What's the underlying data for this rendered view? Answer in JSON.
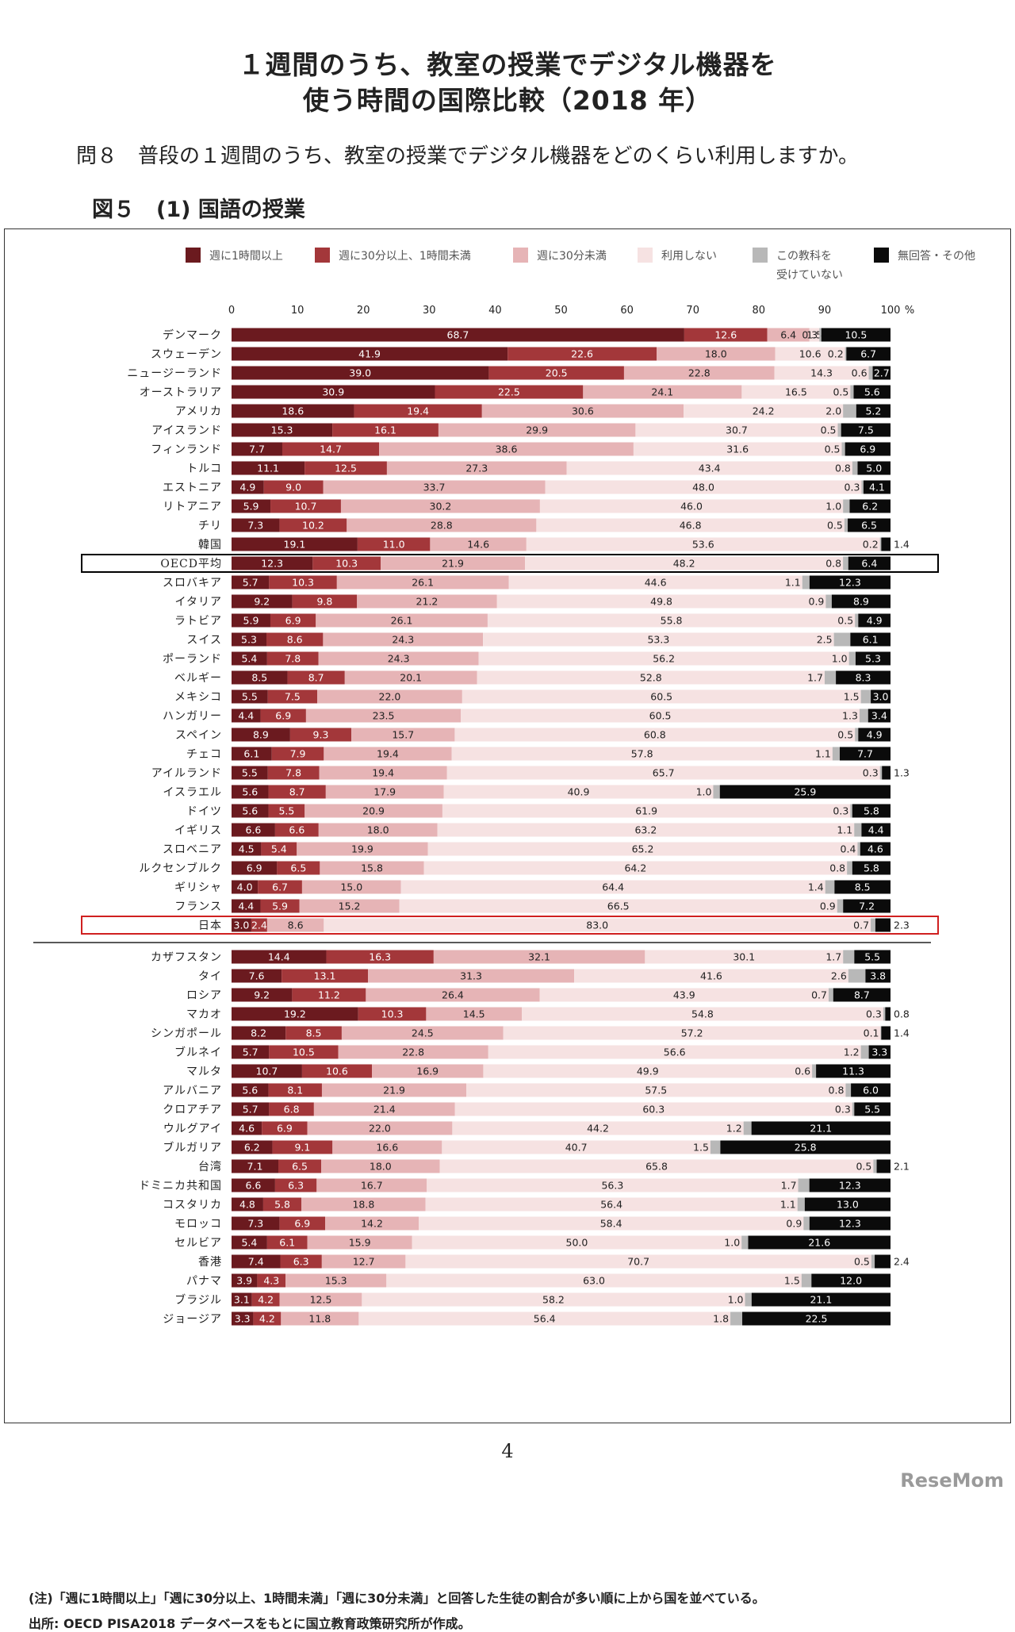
{
  "page": {
    "title_line1": "１週間のうち、教室の授業でデジタル機器を",
    "title_line2": "使う時間の国際比較（2018 年）",
    "question": "問８　普段の１週間のうち、教室の授業でデジタル機器をどのくらい利用しますか。",
    "figure_label": "図５　(1) 国語の授業",
    "note": "(注)「週に1時間以上」「週に30分以上、1時間未満」「週に30分未満」と回答した生徒の割合が多い順に上から国を並べている。",
    "source": "出所: OECD PISA2018 データベースをもとに国立教育政策研究所が作成。",
    "page_number": "4",
    "watermark": "ReseMom"
  },
  "chart_data": {
    "type": "bar",
    "orientation": "horizontal",
    "stacked": true,
    "xlim": [
      0,
      100
    ],
    "ticks": [
      0,
      10,
      20,
      30,
      40,
      50,
      60,
      70,
      80,
      90,
      100
    ],
    "tick_suffix": "%",
    "legend": [
      {
        "name": "週に1時間以上",
        "color": "#6b1a1f"
      },
      {
        "name": "週に30分以上、1時間未満",
        "color": "#a3373a"
      },
      {
        "name": "週に30分未満",
        "color": "#e6b4b6"
      },
      {
        "name": "利用しない",
        "color": "#f6e2e2"
      },
      {
        "name": "この教科を受けていない",
        "color": "#b8b8b8"
      },
      {
        "name": "無回答・その他",
        "color": "#0b0b0b"
      }
    ],
    "highlight": [
      {
        "country": "OECD平均",
        "color": "#000000"
      },
      {
        "country": "日本",
        "color": "#d02020"
      }
    ],
    "rows": [
      {
        "country": "デンマーク",
        "values": [
          68.7,
          12.6,
          6.4,
          1.5,
          0.3,
          10.5
        ]
      },
      {
        "country": "スウェーデン",
        "values": [
          41.9,
          22.6,
          18.0,
          10.6,
          0.2,
          6.7
        ]
      },
      {
        "country": "ニュージーランド",
        "values": [
          39.0,
          20.5,
          22.8,
          14.3,
          0.6,
          2.7
        ]
      },
      {
        "country": "オーストラリア",
        "values": [
          30.9,
          22.5,
          24.1,
          16.5,
          0.5,
          5.6
        ]
      },
      {
        "country": "アメリカ",
        "values": [
          18.6,
          19.4,
          30.6,
          24.2,
          2.0,
          5.2
        ]
      },
      {
        "country": "アイスランド",
        "values": [
          15.3,
          16.1,
          29.9,
          30.7,
          0.5,
          7.5
        ]
      },
      {
        "country": "フィンランド",
        "values": [
          7.7,
          14.7,
          38.6,
          31.6,
          0.5,
          6.9
        ]
      },
      {
        "country": "トルコ",
        "values": [
          11.1,
          12.5,
          27.3,
          43.4,
          0.8,
          5.0
        ]
      },
      {
        "country": "エストニア",
        "values": [
          4.9,
          9.0,
          33.7,
          48.0,
          0.3,
          4.1
        ]
      },
      {
        "country": "リトアニア",
        "values": [
          5.9,
          10.7,
          30.2,
          46.0,
          1.0,
          6.2
        ]
      },
      {
        "country": "チリ",
        "values": [
          7.3,
          10.2,
          28.8,
          46.8,
          0.5,
          6.5
        ]
      },
      {
        "country": "韓国",
        "values": [
          19.1,
          11.0,
          14.6,
          53.6,
          0.2,
          1.4
        ]
      },
      {
        "country": "OECD平均",
        "values": [
          12.3,
          10.3,
          21.9,
          48.2,
          0.8,
          6.4
        ]
      },
      {
        "country": "スロバキア",
        "values": [
          5.7,
          10.3,
          26.1,
          44.6,
          1.1,
          12.3
        ]
      },
      {
        "country": "イタリア",
        "values": [
          9.2,
          9.8,
          21.2,
          49.8,
          0.9,
          8.9
        ]
      },
      {
        "country": "ラトビア",
        "values": [
          5.9,
          6.9,
          26.1,
          55.8,
          0.5,
          4.9
        ]
      },
      {
        "country": "スイス",
        "values": [
          5.3,
          8.6,
          24.3,
          53.3,
          2.5,
          6.1
        ]
      },
      {
        "country": "ポーランド",
        "values": [
          5.4,
          7.8,
          24.3,
          56.2,
          1.0,
          5.3
        ]
      },
      {
        "country": "ベルギー",
        "values": [
          8.5,
          8.7,
          20.1,
          52.8,
          1.7,
          8.3
        ]
      },
      {
        "country": "メキシコ",
        "values": [
          5.5,
          7.5,
          22.0,
          60.5,
          1.5,
          3.0
        ]
      },
      {
        "country": "ハンガリー",
        "values": [
          4.4,
          6.9,
          23.5,
          60.5,
          1.3,
          3.4
        ]
      },
      {
        "country": "スペイン",
        "values": [
          8.9,
          9.3,
          15.7,
          60.8,
          0.5,
          4.9
        ]
      },
      {
        "country": "チェコ",
        "values": [
          6.1,
          7.9,
          19.4,
          57.8,
          1.1,
          7.7
        ]
      },
      {
        "country": "アイルランド",
        "values": [
          5.5,
          7.8,
          19.4,
          65.7,
          0.3,
          1.3
        ]
      },
      {
        "country": "イスラエル",
        "values": [
          5.6,
          8.7,
          17.9,
          40.9,
          1.0,
          25.9
        ]
      },
      {
        "country": "ドイツ",
        "values": [
          5.6,
          5.5,
          20.9,
          61.9,
          0.3,
          5.8
        ]
      },
      {
        "country": "イギリス",
        "values": [
          6.6,
          6.6,
          18.0,
          63.2,
          1.1,
          4.4
        ]
      },
      {
        "country": "スロベニア",
        "values": [
          4.5,
          5.4,
          19.9,
          65.2,
          0.4,
          4.6
        ]
      },
      {
        "country": "ルクセンブルク",
        "values": [
          6.9,
          6.5,
          15.8,
          64.2,
          0.8,
          5.8
        ]
      },
      {
        "country": "ギリシャ",
        "values": [
          4.0,
          6.7,
          15.0,
          64.4,
          1.4,
          8.5
        ]
      },
      {
        "country": "フランス",
        "values": [
          4.4,
          5.9,
          15.2,
          66.5,
          0.9,
          7.2
        ]
      },
      {
        "country": "日本",
        "values": [
          3.0,
          2.4,
          8.6,
          83.0,
          0.7,
          2.3
        ]
      },
      {
        "country": "カザフスタン",
        "values": [
          14.4,
          16.3,
          32.1,
          30.1,
          1.7,
          5.5
        ]
      },
      {
        "country": "タイ",
        "values": [
          7.6,
          13.1,
          31.3,
          41.6,
          2.6,
          3.8
        ]
      },
      {
        "country": "ロシア",
        "values": [
          9.2,
          11.2,
          26.4,
          43.9,
          0.7,
          8.7
        ]
      },
      {
        "country": "マカオ",
        "values": [
          19.2,
          10.3,
          14.5,
          54.8,
          0.3,
          0.8
        ]
      },
      {
        "country": "シンガポール",
        "values": [
          8.2,
          8.5,
          24.5,
          57.2,
          0.1,
          1.4
        ]
      },
      {
        "country": "ブルネイ",
        "values": [
          5.7,
          10.5,
          22.8,
          56.6,
          1.2,
          3.3
        ]
      },
      {
        "country": "マルタ",
        "values": [
          10.7,
          10.6,
          16.9,
          49.9,
          0.6,
          11.3
        ]
      },
      {
        "country": "アルバニア",
        "values": [
          5.6,
          8.1,
          21.9,
          57.5,
          0.8,
          6.0
        ]
      },
      {
        "country": "クロアチア",
        "values": [
          5.7,
          6.8,
          21.4,
          60.3,
          0.3,
          5.5
        ]
      },
      {
        "country": "ウルグアイ",
        "values": [
          4.6,
          6.9,
          22.0,
          44.2,
          1.2,
          21.1
        ]
      },
      {
        "country": "ブルガリア",
        "values": [
          6.2,
          9.1,
          16.6,
          40.7,
          1.5,
          25.8
        ]
      },
      {
        "country": "台湾",
        "values": [
          7.1,
          6.5,
          18.0,
          65.8,
          0.5,
          2.1
        ]
      },
      {
        "country": "ドミニカ共和国",
        "values": [
          6.6,
          6.3,
          16.7,
          56.3,
          1.7,
          12.3
        ]
      },
      {
        "country": "コスタリカ",
        "values": [
          4.8,
          5.8,
          18.8,
          56.4,
          1.1,
          13.0
        ]
      },
      {
        "country": "モロッコ",
        "values": [
          7.3,
          6.9,
          14.2,
          58.4,
          0.9,
          12.3
        ]
      },
      {
        "country": "セルビア",
        "values": [
          5.4,
          6.1,
          15.9,
          50.0,
          1.0,
          21.6
        ]
      },
      {
        "country": "香港",
        "values": [
          7.4,
          6.3,
          12.7,
          70.7,
          0.5,
          2.4
        ]
      },
      {
        "country": "パナマ",
        "values": [
          3.9,
          4.3,
          15.3,
          63.0,
          1.5,
          12.0
        ]
      },
      {
        "country": "ブラジル",
        "values": [
          3.1,
          4.2,
          12.5,
          58.2,
          1.0,
          21.1
        ]
      },
      {
        "country": "ジョージア",
        "values": [
          3.3,
          4.2,
          11.8,
          56.4,
          1.8,
          22.5
        ]
      }
    ]
  }
}
